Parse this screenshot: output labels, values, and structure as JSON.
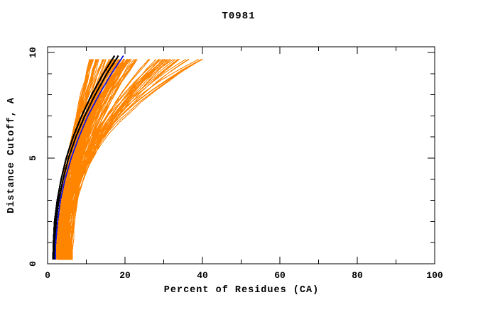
{
  "chart": {
    "title": "T0981",
    "x_axis": {
      "label": "Percent of Residues (CA)",
      "min": 0,
      "max": 100,
      "major_ticks": [
        0,
        20,
        40,
        60,
        80,
        100
      ],
      "minor_tick_step": 10
    },
    "y_axis": {
      "label": "Distance Cutoff, A",
      "min": 0,
      "max": 10,
      "major_ticks": [
        0,
        5,
        10
      ],
      "minor_tick_step": 1
    }
  },
  "chart_data": {
    "type": "line",
    "title": "T0981",
    "xlabel": "Percent of Residues (CA)",
    "ylabel": "Distance Cutoff, A",
    "xlim": [
      0,
      100
    ],
    "ylim": [
      0,
      10
    ],
    "grid": false,
    "legend": null,
    "description": "Bundle of cumulative model-accuracy curves: percent of CA residues fitting under each distance cutoff. Orange = population of predicted models fanning from x=2-7% at 0.2 A out to 11-42% at 9.85 A; two overlapping black curves and one blue curve are highlighted models on the left edge of the bundle.",
    "highlighted_series": [
      {
        "name": "model-black-1",
        "color": "#000000",
        "width": 2.2,
        "points": [
          [
            1.4,
            0.2
          ],
          [
            1.5,
            1
          ],
          [
            1.8,
            2
          ],
          [
            2.5,
            3
          ],
          [
            3.5,
            4
          ],
          [
            4.8,
            5
          ],
          [
            6.6,
            6
          ],
          [
            8.8,
            7
          ],
          [
            11.4,
            8
          ],
          [
            14.4,
            9
          ],
          [
            17.3,
            9.85
          ]
        ]
      },
      {
        "name": "model-black-2",
        "color": "#000000",
        "width": 2.2,
        "points": [
          [
            1.7,
            0.2
          ],
          [
            1.8,
            1
          ],
          [
            2.2,
            2
          ],
          [
            2.9,
            3
          ],
          [
            4.0,
            4
          ],
          [
            5.4,
            5
          ],
          [
            7.3,
            6
          ],
          [
            9.6,
            7
          ],
          [
            12.3,
            8
          ],
          [
            15.3,
            9
          ],
          [
            18.3,
            9.85
          ]
        ]
      },
      {
        "name": "model-blue",
        "color": "#1414e0",
        "width": 1.8,
        "points": [
          [
            2.0,
            0.2
          ],
          [
            2.1,
            1
          ],
          [
            2.6,
            2
          ],
          [
            3.3,
            3
          ],
          [
            4.5,
            4
          ],
          [
            6.1,
            5
          ],
          [
            8.1,
            6
          ],
          [
            10.4,
            7
          ],
          [
            13.3,
            8
          ],
          [
            16.5,
            9
          ],
          [
            19.6,
            9.85
          ]
        ]
      }
    ],
    "background_series_family": {
      "name": "orange-model-population",
      "color": "#ff8400",
      "width": 1.1,
      "count_core": 70,
      "count_fan": 45,
      "y_start": 0.18,
      "y_end": 9.85,
      "y_step": 0.5,
      "core": {
        "x_start": [
          2.0,
          5.5
        ],
        "x_end": [
          11,
          22
        ],
        "exponent": [
          1.7,
          2.4
        ]
      },
      "fan": {
        "x_start": [
          2.5,
          6.5
        ],
        "x_end": [
          20,
          41.8
        ],
        "exponent": [
          1.6,
          3.0
        ]
      },
      "jitter": 0.18,
      "seed": 1234
    }
  },
  "colors": {
    "background": "#ffffff",
    "frame": "#000000",
    "text": "#000000",
    "orange": "#ff8400",
    "black": "#000000",
    "blue": "#1414e0"
  }
}
